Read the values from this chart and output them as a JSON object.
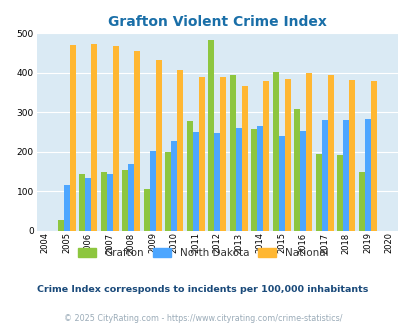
{
  "title": "Grafton Violent Crime Index",
  "years": [
    2004,
    2005,
    2006,
    2007,
    2008,
    2009,
    2010,
    2011,
    2012,
    2013,
    2014,
    2015,
    2016,
    2017,
    2018,
    2019,
    2020
  ],
  "grafton": [
    0,
    28,
    145,
    150,
    155,
    105,
    200,
    278,
    483,
    395,
    258,
    401,
    307,
    195,
    193,
    148,
    0
  ],
  "north_dakota": [
    0,
    115,
    133,
    145,
    170,
    203,
    228,
    250,
    248,
    260,
    265,
    240,
    253,
    280,
    281,
    283,
    0
  ],
  "national": [
    0,
    470,
    473,
    467,
    455,
    432,
    406,
    389,
    389,
    367,
    378,
    383,
    398,
    394,
    381,
    379,
    0
  ],
  "grafton_color": "#8dc63f",
  "nd_color": "#4da6ff",
  "national_color": "#ffb732",
  "bg_color": "#daeaf4",
  "title_color": "#1a6fa8",
  "yticks": [
    0,
    100,
    200,
    300,
    400,
    500
  ],
  "subtitle": "Crime Index corresponds to incidents per 100,000 inhabitants",
  "footer": "© 2025 CityRating.com - https://www.cityrating.com/crime-statistics/",
  "subtitle_color": "#1a4a7a",
  "footer_color": "#9aabb8",
  "legend_labels": [
    "Grafton",
    "North Dakota",
    "National"
  ],
  "bar_width": 0.28
}
